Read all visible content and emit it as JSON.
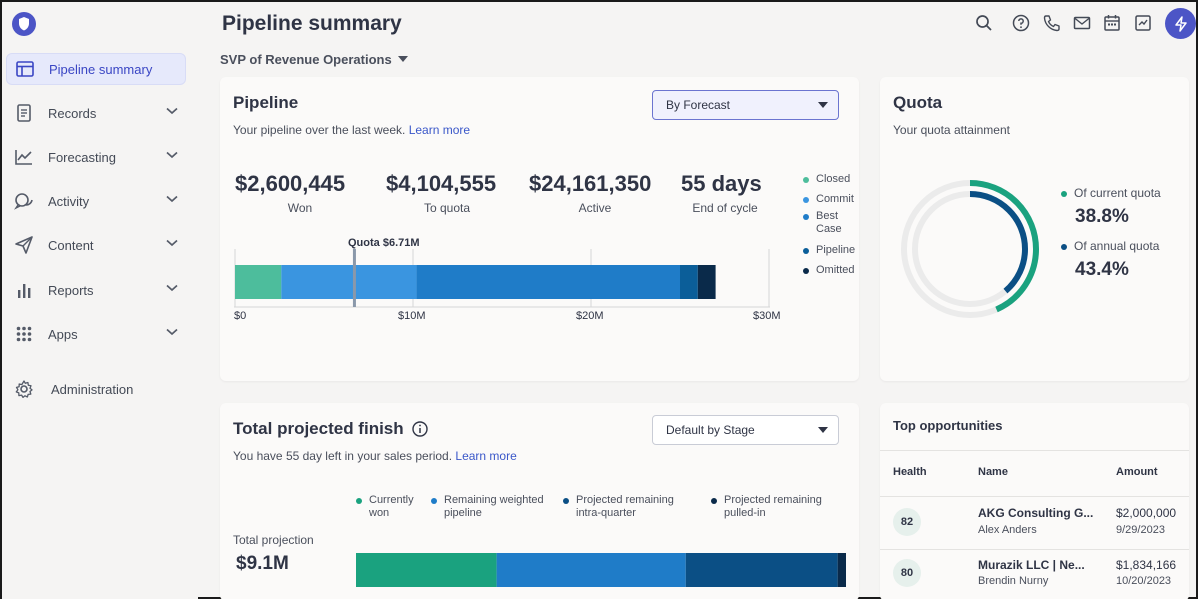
{
  "sidebar": {
    "items": [
      {
        "label": "Pipeline summary",
        "icon": "layout-icon"
      },
      {
        "label": "Records",
        "icon": "document-icon"
      },
      {
        "label": "Forecasting",
        "icon": "trend-chart-icon"
      },
      {
        "label": "Activity",
        "icon": "chat-bubbles-icon"
      },
      {
        "label": "Content",
        "icon": "send-icon"
      },
      {
        "label": "Reports",
        "icon": "bar-chart-icon"
      },
      {
        "label": "Apps",
        "icon": "grid-icon"
      }
    ],
    "admin": "Administration"
  },
  "header": {
    "title": "Pipeline summary",
    "role": "SVP of Revenue Operations"
  },
  "pipeline": {
    "title": "Pipeline",
    "subtitle": "Your pipeline over the last week.",
    "learn_more": "Learn more",
    "dropdown": "By Forecast",
    "stats": [
      {
        "value": "$2,600,445",
        "label": "Won"
      },
      {
        "value": "$4,104,555",
        "label": "To quota"
      },
      {
        "value": "$24,161,350",
        "label": "Active"
      },
      {
        "value": "55 days",
        "label": "End of cycle"
      }
    ],
    "quota_marker": "Quota $6.71M",
    "ticks": [
      "$0",
      "$10M",
      "$20M",
      "$30M"
    ],
    "legend": [
      "Closed",
      "Commit",
      "Best Case",
      "Pipeline",
      "Omitted"
    ],
    "colors": {
      "closed": "#4dbd9c",
      "commit": "#3a95e0",
      "best_case": "#1f7cc8",
      "pipeline": "#0b5e99",
      "omitted": "#0a2a4a"
    }
  },
  "chart_data": {
    "type": "bar",
    "orientation": "horizontal-stacked",
    "xlim": [
      0,
      30
    ],
    "x_unit": "$M",
    "segments": [
      {
        "name": "Closed",
        "start": 0,
        "end": 2.6
      },
      {
        "name": "Commit",
        "start": 2.6,
        "end": 10.2
      },
      {
        "name": "Best Case",
        "start": 10.2,
        "end": 25.0
      },
      {
        "name": "Pipeline",
        "start": 25.0,
        "end": 26.0
      },
      {
        "name": "Omitted",
        "start": 26.0,
        "end": 27.0
      }
    ],
    "quota": 6.71
  },
  "quota": {
    "title": "Quota",
    "subtitle": "Your quota attainment",
    "current_label": "Of current quota",
    "current_value": "38.8%",
    "annual_label": "Of annual quota",
    "annual_value": "43.4%",
    "current_fraction": 0.388,
    "annual_fraction": 0.434,
    "colors": {
      "current": "#1aa27f",
      "annual": "#0b4f85"
    }
  },
  "projected": {
    "title": "Total projected finish",
    "subtitle": "You have 55 day left in your sales period.",
    "learn_more": "Learn more",
    "dropdown": "Default by Stage",
    "legend": [
      {
        "label": "Currently won",
        "color": "#1aa27f"
      },
      {
        "label": "Remaining weighted pipeline",
        "color": "#1f7cc8"
      },
      {
        "label": "Projected remaining intra-quarter",
        "color": "#0b4f85"
      },
      {
        "label": "Projected remaining pulled-in",
        "color": "#0a2a4a"
      }
    ],
    "total_label": "Total projection",
    "total_value": "$9.1M"
  },
  "projection_data": {
    "segments": [
      0.287,
      0.386,
      0.31,
      0.017
    ]
  },
  "opportunities": {
    "title": "Top opportunities",
    "headers": [
      "Health",
      "Name",
      "Amount"
    ],
    "rows": [
      {
        "health": "82",
        "name": "AKG Consulting G...",
        "owner": "Alex Anders",
        "amount": "$2,000,000",
        "date": "9/29/2023"
      },
      {
        "health": "80",
        "name": "Murazik LLC | Ne...",
        "owner": "Brendin Nurny",
        "amount": "$1,834,166",
        "date": "10/20/2023"
      }
    ]
  }
}
